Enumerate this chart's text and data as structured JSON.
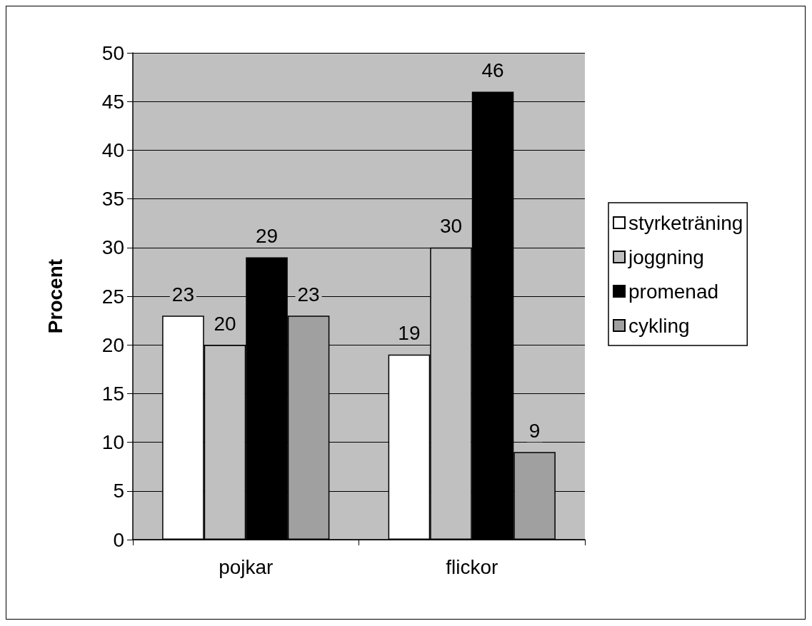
{
  "chart_data": {
    "type": "bar",
    "ylabel": "Procent",
    "categories": [
      "pojkar",
      "flickor"
    ],
    "series": [
      {
        "name": "styrketräning",
        "color": "#ffffff",
        "values": [
          23,
          19
        ]
      },
      {
        "name": "joggning",
        "color": "#c0c0c0",
        "values": [
          20,
          30
        ]
      },
      {
        "name": "promenad",
        "color": "#000000",
        "values": [
          29,
          46
        ]
      },
      {
        "name": "cykling",
        "color": "#a0a0a0",
        "values": [
          23,
          9
        ]
      }
    ],
    "ylim": [
      0,
      50
    ],
    "yticks": [
      0,
      5,
      10,
      15,
      20,
      25,
      30,
      35,
      40,
      45,
      50
    ],
    "grid": "y",
    "legend": "right",
    "data_labels": true
  }
}
